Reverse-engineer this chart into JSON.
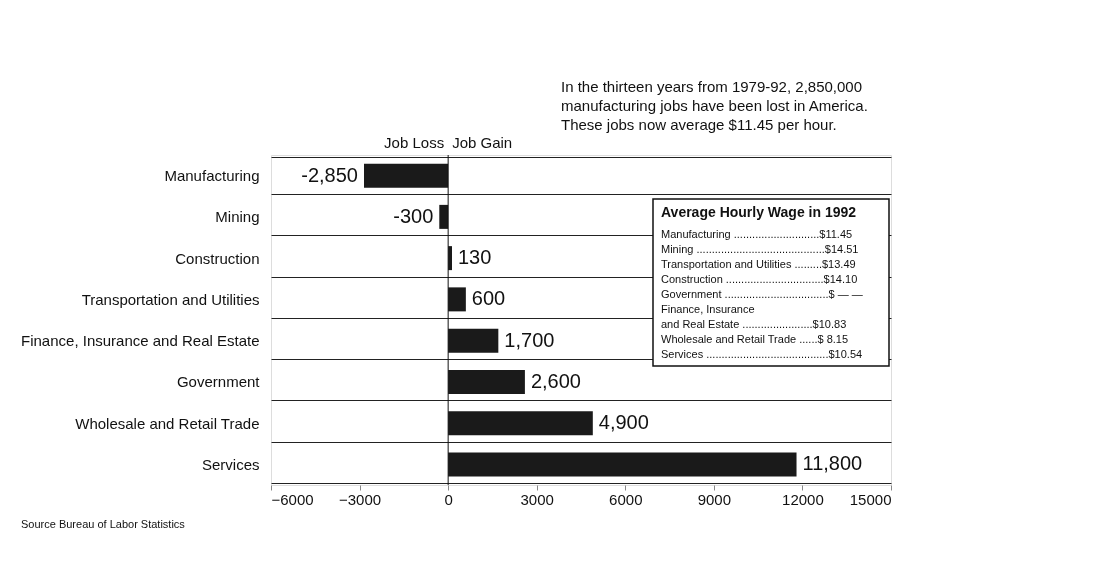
{
  "chart_data": {
    "type": "bar",
    "orientation": "horizontal",
    "categories": [
      "Manufacturing",
      "Mining",
      "Construction",
      "Transportation and Utilities",
      "Finance, Insurance and Real Estate",
      "Government",
      "Wholesale and Retail Trade",
      "Services"
    ],
    "values": [
      -2850,
      -300,
      130,
      600,
      1700,
      2600,
      4900,
      11800
    ],
    "value_labels": [
      "-2,850",
      "-300",
      "130",
      "600",
      "1,700",
      "2,600",
      "4,900",
      "11,800"
    ],
    "color": "#1a1a1a",
    "xlim": [
      -6000,
      15000
    ],
    "xticks": [
      -6000,
      -3000,
      0,
      3000,
      6000,
      9000,
      12000,
      15000
    ],
    "grid": "y",
    "annotations": [
      "In the thirteen years from 1979-92, 2,850,000",
      "manufacturing jobs have been lost in America.",
      "These jobs now average $11.45 per hour.",
      "Average Hourly Wage in 1992",
      "Manufacturing ............................$11.45",
      "Mining ..........................................$14.51",
      "Transportation and Utilities .........$13.49",
      "Construction ................................$14.10",
      "Government ..................................$ — —",
      "Finance, Insurance",
      "   and Real Estate .......................$10.83",
      "Wholesale and Retail Trade ......$ 8.15",
      "Services ........................................$10.54",
      "Job Loss",
      "Job Gain",
      "Source Bureau of Labor Statistics"
    ]
  }
}
